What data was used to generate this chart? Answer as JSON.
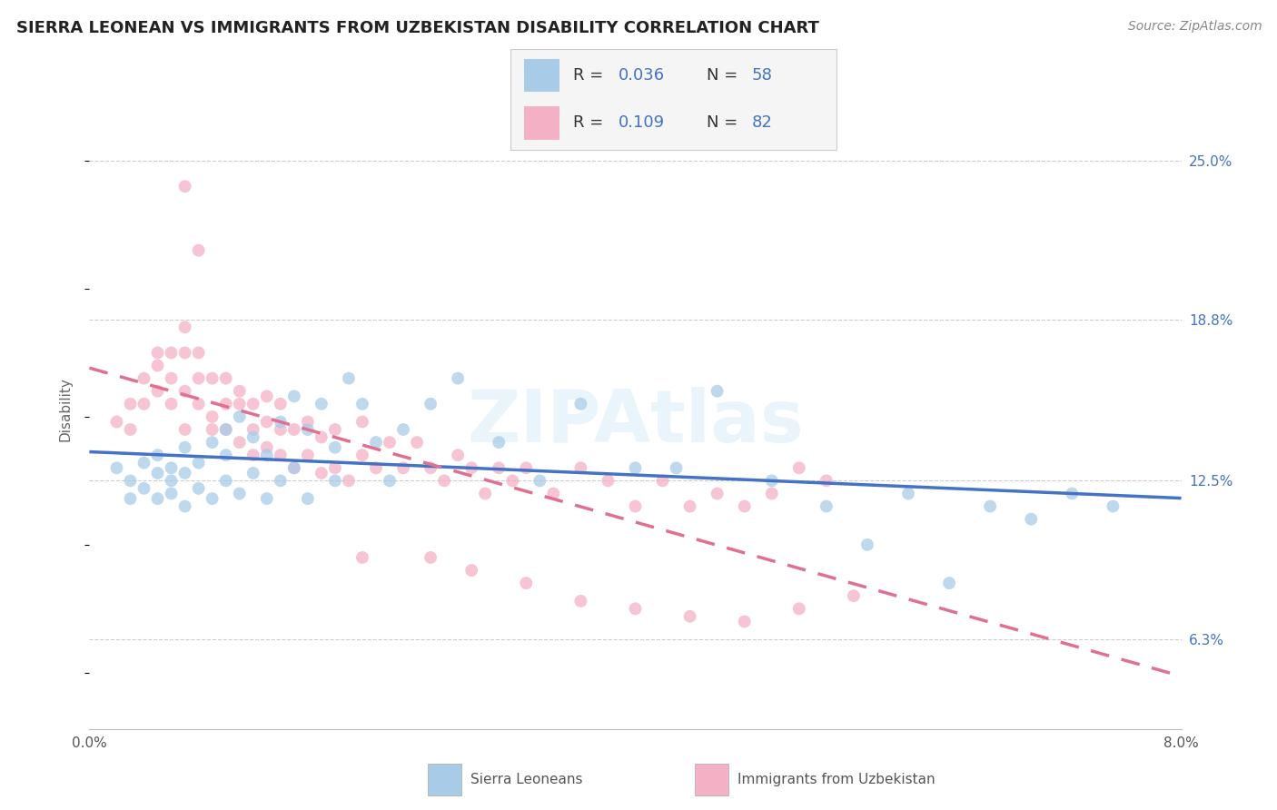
{
  "title": "SIERRA LEONEAN VS IMMIGRANTS FROM UZBEKISTAN DISABILITY CORRELATION CHART",
  "source": "Source: ZipAtlas.com",
  "ylabel": "Disability",
  "x_min": 0.0,
  "x_max": 0.08,
  "y_min": 0.028,
  "y_max": 0.278,
  "y_ticks": [
    0.063,
    0.125,
    0.188,
    0.25
  ],
  "y_tick_labels": [
    "6.3%",
    "12.5%",
    "18.8%",
    "25.0%"
  ],
  "x_ticks": [
    0.0,
    0.02,
    0.04,
    0.06,
    0.08
  ],
  "x_tick_labels": [
    "0.0%",
    "",
    "",
    "",
    "8.0%"
  ],
  "blue_color": "#a8cce8",
  "pink_color": "#f4b0c4",
  "trend_blue_color": "#4472c4",
  "trend_pink_color": "#e07090",
  "legend_blue_r": "0.036",
  "legend_blue_n": "58",
  "legend_pink_r": "0.109",
  "legend_pink_n": "82",
  "blue_scatter_x": [
    0.002,
    0.003,
    0.003,
    0.004,
    0.004,
    0.005,
    0.005,
    0.005,
    0.006,
    0.006,
    0.006,
    0.007,
    0.007,
    0.007,
    0.008,
    0.008,
    0.009,
    0.009,
    0.01,
    0.01,
    0.01,
    0.011,
    0.011,
    0.012,
    0.012,
    0.013,
    0.013,
    0.014,
    0.014,
    0.015,
    0.015,
    0.016,
    0.016,
    0.017,
    0.018,
    0.018,
    0.019,
    0.02,
    0.021,
    0.022,
    0.023,
    0.025,
    0.027,
    0.03,
    0.033,
    0.036,
    0.04,
    0.043,
    0.046,
    0.05,
    0.054,
    0.057,
    0.06,
    0.063,
    0.066,
    0.069,
    0.072,
    0.075
  ],
  "blue_scatter_y": [
    0.13,
    0.125,
    0.118,
    0.132,
    0.122,
    0.128,
    0.118,
    0.135,
    0.12,
    0.13,
    0.125,
    0.138,
    0.115,
    0.128,
    0.122,
    0.132,
    0.118,
    0.14,
    0.125,
    0.135,
    0.145,
    0.12,
    0.15,
    0.128,
    0.142,
    0.118,
    0.135,
    0.148,
    0.125,
    0.158,
    0.13,
    0.145,
    0.118,
    0.155,
    0.138,
    0.125,
    0.165,
    0.155,
    0.14,
    0.125,
    0.145,
    0.155,
    0.165,
    0.14,
    0.125,
    0.155,
    0.13,
    0.13,
    0.16,
    0.125,
    0.115,
    0.1,
    0.12,
    0.085,
    0.115,
    0.11,
    0.12,
    0.115
  ],
  "pink_scatter_x": [
    0.002,
    0.003,
    0.003,
    0.004,
    0.004,
    0.005,
    0.005,
    0.005,
    0.006,
    0.006,
    0.006,
    0.007,
    0.007,
    0.007,
    0.007,
    0.008,
    0.008,
    0.008,
    0.009,
    0.009,
    0.009,
    0.01,
    0.01,
    0.01,
    0.011,
    0.011,
    0.011,
    0.012,
    0.012,
    0.012,
    0.013,
    0.013,
    0.013,
    0.014,
    0.014,
    0.014,
    0.015,
    0.015,
    0.016,
    0.016,
    0.017,
    0.017,
    0.018,
    0.018,
    0.019,
    0.02,
    0.02,
    0.021,
    0.022,
    0.023,
    0.024,
    0.025,
    0.026,
    0.027,
    0.028,
    0.029,
    0.03,
    0.031,
    0.032,
    0.034,
    0.036,
    0.038,
    0.04,
    0.042,
    0.044,
    0.046,
    0.048,
    0.05,
    0.052,
    0.054,
    0.007,
    0.008,
    0.02,
    0.025,
    0.028,
    0.032,
    0.036,
    0.04,
    0.044,
    0.048,
    0.052,
    0.056
  ],
  "pink_scatter_y": [
    0.148,
    0.155,
    0.145,
    0.165,
    0.155,
    0.175,
    0.16,
    0.17,
    0.165,
    0.155,
    0.175,
    0.16,
    0.175,
    0.185,
    0.145,
    0.165,
    0.175,
    0.155,
    0.15,
    0.165,
    0.145,
    0.155,
    0.165,
    0.145,
    0.155,
    0.14,
    0.16,
    0.145,
    0.155,
    0.135,
    0.148,
    0.158,
    0.138,
    0.145,
    0.135,
    0.155,
    0.13,
    0.145,
    0.135,
    0.148,
    0.128,
    0.142,
    0.13,
    0.145,
    0.125,
    0.135,
    0.148,
    0.13,
    0.14,
    0.13,
    0.14,
    0.13,
    0.125,
    0.135,
    0.13,
    0.12,
    0.13,
    0.125,
    0.13,
    0.12,
    0.13,
    0.125,
    0.115,
    0.125,
    0.115,
    0.12,
    0.115,
    0.12,
    0.13,
    0.125,
    0.24,
    0.215,
    0.095,
    0.095,
    0.09,
    0.085,
    0.078,
    0.075,
    0.072,
    0.07,
    0.075,
    0.08
  ]
}
